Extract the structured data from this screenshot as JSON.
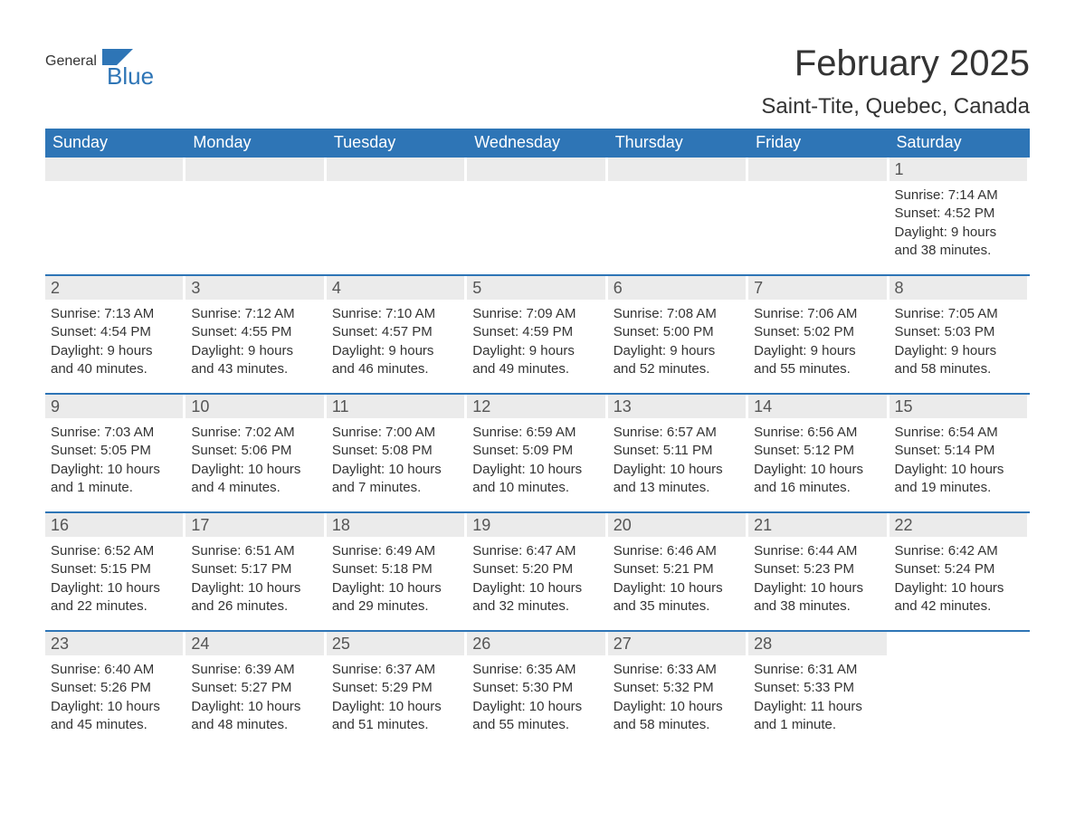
{
  "brand": {
    "line1": "General",
    "line2": "Blue",
    "logo_color": "#2e75b6",
    "text_color": "#333333"
  },
  "title": "February 2025",
  "location": "Saint-Tite, Quebec, Canada",
  "style": {
    "header_bg": "#2e75b6",
    "header_text": "#ffffff",
    "daynum_bg": "#ebebeb",
    "daynum_text": "#555555",
    "body_text": "#333333",
    "row_divider": "#2e75b6",
    "page_bg": "#ffffff",
    "title_fontsize": 40,
    "location_fontsize": 24,
    "dow_fontsize": 18,
    "daynum_fontsize": 18,
    "body_fontsize": 15
  },
  "days_of_week": [
    "Sunday",
    "Monday",
    "Tuesday",
    "Wednesday",
    "Thursday",
    "Friday",
    "Saturday"
  ],
  "weeks": [
    [
      {
        "empty": true
      },
      {
        "empty": true
      },
      {
        "empty": true
      },
      {
        "empty": true
      },
      {
        "empty": true
      },
      {
        "empty": true
      },
      {
        "n": "1",
        "sunrise": "Sunrise: 7:14 AM",
        "sunset": "Sunset: 4:52 PM",
        "day1": "Daylight: 9 hours",
        "day2": "and 38 minutes."
      }
    ],
    [
      {
        "n": "2",
        "sunrise": "Sunrise: 7:13 AM",
        "sunset": "Sunset: 4:54 PM",
        "day1": "Daylight: 9 hours",
        "day2": "and 40 minutes."
      },
      {
        "n": "3",
        "sunrise": "Sunrise: 7:12 AM",
        "sunset": "Sunset: 4:55 PM",
        "day1": "Daylight: 9 hours",
        "day2": "and 43 minutes."
      },
      {
        "n": "4",
        "sunrise": "Sunrise: 7:10 AM",
        "sunset": "Sunset: 4:57 PM",
        "day1": "Daylight: 9 hours",
        "day2": "and 46 minutes."
      },
      {
        "n": "5",
        "sunrise": "Sunrise: 7:09 AM",
        "sunset": "Sunset: 4:59 PM",
        "day1": "Daylight: 9 hours",
        "day2": "and 49 minutes."
      },
      {
        "n": "6",
        "sunrise": "Sunrise: 7:08 AM",
        "sunset": "Sunset: 5:00 PM",
        "day1": "Daylight: 9 hours",
        "day2": "and 52 minutes."
      },
      {
        "n": "7",
        "sunrise": "Sunrise: 7:06 AM",
        "sunset": "Sunset: 5:02 PM",
        "day1": "Daylight: 9 hours",
        "day2": "and 55 minutes."
      },
      {
        "n": "8",
        "sunrise": "Sunrise: 7:05 AM",
        "sunset": "Sunset: 5:03 PM",
        "day1": "Daylight: 9 hours",
        "day2": "and 58 minutes."
      }
    ],
    [
      {
        "n": "9",
        "sunrise": "Sunrise: 7:03 AM",
        "sunset": "Sunset: 5:05 PM",
        "day1": "Daylight: 10 hours",
        "day2": "and 1 minute."
      },
      {
        "n": "10",
        "sunrise": "Sunrise: 7:02 AM",
        "sunset": "Sunset: 5:06 PM",
        "day1": "Daylight: 10 hours",
        "day2": "and 4 minutes."
      },
      {
        "n": "11",
        "sunrise": "Sunrise: 7:00 AM",
        "sunset": "Sunset: 5:08 PM",
        "day1": "Daylight: 10 hours",
        "day2": "and 7 minutes."
      },
      {
        "n": "12",
        "sunrise": "Sunrise: 6:59 AM",
        "sunset": "Sunset: 5:09 PM",
        "day1": "Daylight: 10 hours",
        "day2": "and 10 minutes."
      },
      {
        "n": "13",
        "sunrise": "Sunrise: 6:57 AM",
        "sunset": "Sunset: 5:11 PM",
        "day1": "Daylight: 10 hours",
        "day2": "and 13 minutes."
      },
      {
        "n": "14",
        "sunrise": "Sunrise: 6:56 AM",
        "sunset": "Sunset: 5:12 PM",
        "day1": "Daylight: 10 hours",
        "day2": "and 16 minutes."
      },
      {
        "n": "15",
        "sunrise": "Sunrise: 6:54 AM",
        "sunset": "Sunset: 5:14 PM",
        "day1": "Daylight: 10 hours",
        "day2": "and 19 minutes."
      }
    ],
    [
      {
        "n": "16",
        "sunrise": "Sunrise: 6:52 AM",
        "sunset": "Sunset: 5:15 PM",
        "day1": "Daylight: 10 hours",
        "day2": "and 22 minutes."
      },
      {
        "n": "17",
        "sunrise": "Sunrise: 6:51 AM",
        "sunset": "Sunset: 5:17 PM",
        "day1": "Daylight: 10 hours",
        "day2": "and 26 minutes."
      },
      {
        "n": "18",
        "sunrise": "Sunrise: 6:49 AM",
        "sunset": "Sunset: 5:18 PM",
        "day1": "Daylight: 10 hours",
        "day2": "and 29 minutes."
      },
      {
        "n": "19",
        "sunrise": "Sunrise: 6:47 AM",
        "sunset": "Sunset: 5:20 PM",
        "day1": "Daylight: 10 hours",
        "day2": "and 32 minutes."
      },
      {
        "n": "20",
        "sunrise": "Sunrise: 6:46 AM",
        "sunset": "Sunset: 5:21 PM",
        "day1": "Daylight: 10 hours",
        "day2": "and 35 minutes."
      },
      {
        "n": "21",
        "sunrise": "Sunrise: 6:44 AM",
        "sunset": "Sunset: 5:23 PM",
        "day1": "Daylight: 10 hours",
        "day2": "and 38 minutes."
      },
      {
        "n": "22",
        "sunrise": "Sunrise: 6:42 AM",
        "sunset": "Sunset: 5:24 PM",
        "day1": "Daylight: 10 hours",
        "day2": "and 42 minutes."
      }
    ],
    [
      {
        "n": "23",
        "sunrise": "Sunrise: 6:40 AM",
        "sunset": "Sunset: 5:26 PM",
        "day1": "Daylight: 10 hours",
        "day2": "and 45 minutes."
      },
      {
        "n": "24",
        "sunrise": "Sunrise: 6:39 AM",
        "sunset": "Sunset: 5:27 PM",
        "day1": "Daylight: 10 hours",
        "day2": "and 48 minutes."
      },
      {
        "n": "25",
        "sunrise": "Sunrise: 6:37 AM",
        "sunset": "Sunset: 5:29 PM",
        "day1": "Daylight: 10 hours",
        "day2": "and 51 minutes."
      },
      {
        "n": "26",
        "sunrise": "Sunrise: 6:35 AM",
        "sunset": "Sunset: 5:30 PM",
        "day1": "Daylight: 10 hours",
        "day2": "and 55 minutes."
      },
      {
        "n": "27",
        "sunrise": "Sunrise: 6:33 AM",
        "sunset": "Sunset: 5:32 PM",
        "day1": "Daylight: 10 hours",
        "day2": "and 58 minutes."
      },
      {
        "n": "28",
        "sunrise": "Sunrise: 6:31 AM",
        "sunset": "Sunset: 5:33 PM",
        "day1": "Daylight: 11 hours",
        "day2": "and 1 minute."
      },
      {
        "empty": true,
        "nobar": true
      }
    ]
  ]
}
